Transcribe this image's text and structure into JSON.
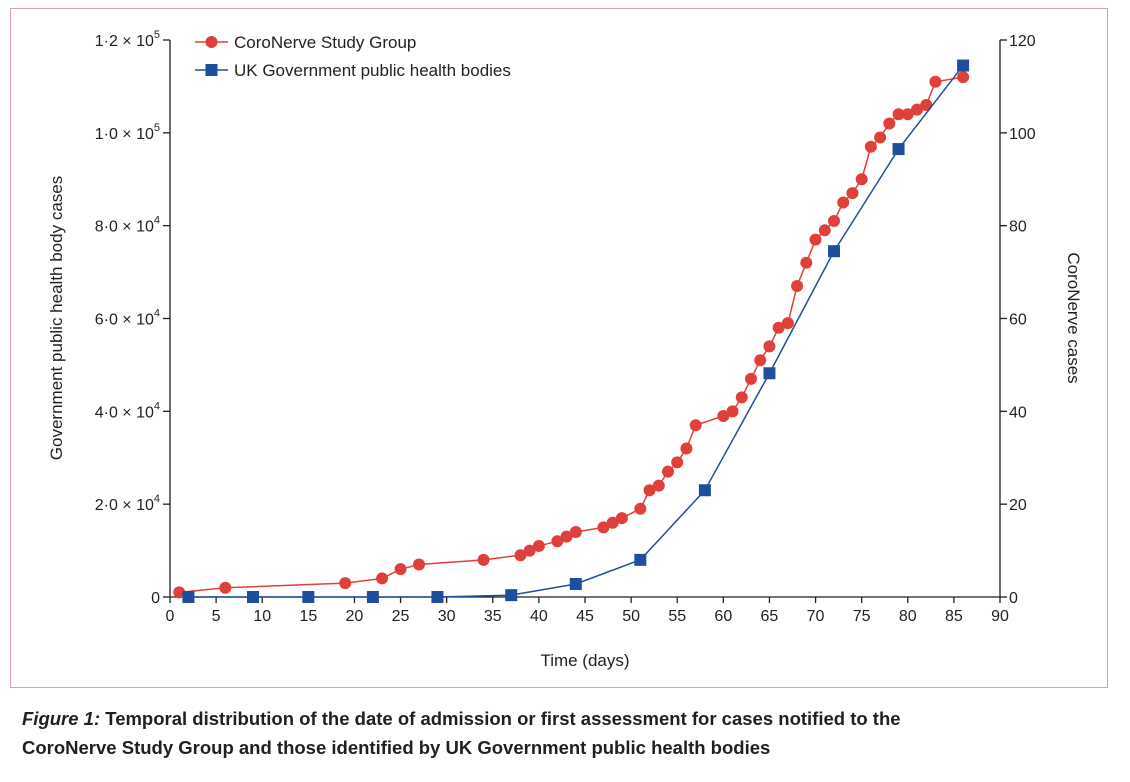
{
  "chart_data": {
    "type": "line",
    "xlabel": "Time (days)",
    "ylabel_left": "Government public health body cases",
    "ylabel_right": "CoroNerve cases",
    "xlim": [
      0,
      90
    ],
    "ylim_left": [
      0,
      120000
    ],
    "ylim_right": [
      0,
      120
    ],
    "x_ticks": [
      "0",
      "5",
      "10",
      "15",
      "20",
      "25",
      "30",
      "35",
      "40",
      "45",
      "50",
      "55",
      "60",
      "65",
      "70",
      "75",
      "80",
      "85",
      "90"
    ],
    "x_tick_values": [
      0,
      5,
      10,
      15,
      20,
      25,
      30,
      35,
      40,
      45,
      50,
      55,
      60,
      65,
      70,
      75,
      80,
      85,
      90
    ],
    "y_left_tick_values": [
      0,
      20000,
      40000,
      60000,
      80000,
      100000,
      120000
    ],
    "y_left_ticks": [
      {
        "mantissa": "0",
        "exp": ""
      },
      {
        "mantissa": "2·0 × 10",
        "exp": "4"
      },
      {
        "mantissa": "4·0 × 10",
        "exp": "4"
      },
      {
        "mantissa": "6·0 × 10",
        "exp": "4"
      },
      {
        "mantissa": "8·0 × 10",
        "exp": "4"
      },
      {
        "mantissa": "1·0 × 10",
        "exp": "5"
      },
      {
        "mantissa": "1·2 × 10",
        "exp": "5"
      }
    ],
    "y_right_ticks": [
      "0",
      "20",
      "40",
      "60",
      "80",
      "100",
      "120"
    ],
    "y_right_tick_values": [
      0,
      20,
      40,
      60,
      80,
      100,
      120
    ],
    "legend_position": "top-left",
    "series": [
      {
        "name": "CoroNerve Study Group",
        "axis": "right",
        "color": "#e0403a",
        "marker": "circle",
        "x": [
          1,
          6,
          19,
          23,
          25,
          27,
          34,
          38,
          39,
          40,
          42,
          43,
          44,
          47,
          48,
          49,
          51,
          52,
          53,
          54,
          55,
          56,
          57,
          60,
          61,
          62,
          63,
          64,
          65,
          66,
          67,
          68,
          69,
          70,
          71,
          72,
          73,
          74,
          75,
          76,
          77,
          78,
          79,
          80,
          81,
          82,
          83,
          86
        ],
        "y": [
          1,
          2,
          3,
          4,
          6,
          7,
          8,
          9,
          10,
          11,
          12,
          13,
          14,
          15,
          16,
          17,
          19,
          23,
          24,
          27,
          29,
          32,
          37,
          39,
          40,
          43,
          47,
          51,
          54,
          58,
          59,
          67,
          72,
          77,
          79,
          81,
          85,
          87,
          90,
          97,
          99,
          102,
          104,
          104,
          105,
          106,
          111,
          112
        ]
      },
      {
        "name": "UK Government public health bodies",
        "axis": "left",
        "color": "#1f4e9c",
        "marker": "square",
        "x": [
          2,
          9,
          15,
          22,
          29,
          37,
          44,
          51,
          58,
          65,
          72,
          79,
          86
        ],
        "y": [
          0,
          0,
          0,
          0,
          0,
          400,
          2800,
          8000,
          23000,
          48200,
          74500,
          96500,
          114500
        ]
      }
    ]
  },
  "caption": {
    "figure_label": "Figure 1:",
    "line1": " Temporal distribution of the date of admission or first assessment for cases notified to the",
    "line2": "CoroNerve Study Group and those identified by UK Government public health bodies"
  }
}
